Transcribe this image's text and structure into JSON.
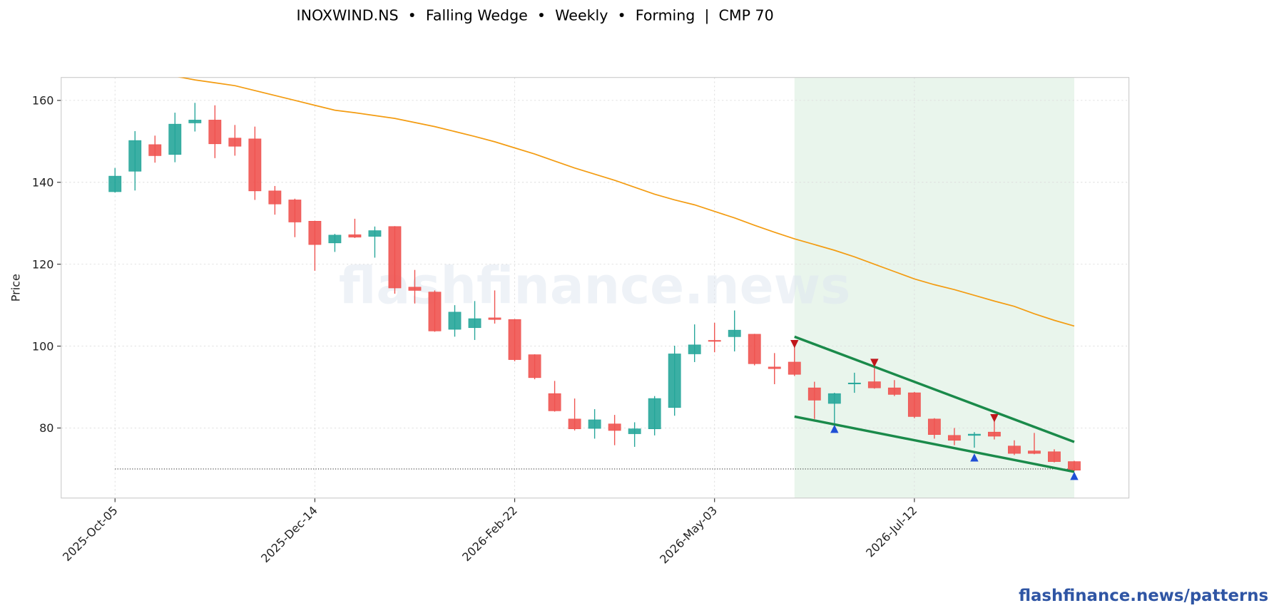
{
  "chart_data": {
    "type": "candlestick",
    "title": "INOXWIND.NS  •  Falling Wedge  •  Weekly  •  Forming  |  CMP 70",
    "ylabel": "Price",
    "watermark": "flashfinance.news",
    "footer": "flashfinance.news/patterns",
    "categories": [
      "2025-Oct-05",
      null,
      null,
      null,
      null,
      null,
      null,
      null,
      null,
      null,
      "2025-Dec-14",
      null,
      null,
      null,
      null,
      null,
      null,
      null,
      null,
      null,
      "2026-Feb-22",
      null,
      null,
      null,
      null,
      null,
      null,
      null,
      null,
      null,
      "2026-May-03",
      null,
      null,
      null,
      null,
      null,
      null,
      null,
      null,
      null,
      "2026-Jul-12",
      null,
      null,
      null,
      null,
      null,
      null,
      null,
      null
    ],
    "open": [
      137.7,
      142.7,
      149.2,
      146.8,
      154.5,
      155.2,
      150.8,
      150.6,
      137.9,
      135.7,
      130.5,
      125.2,
      127.2,
      126.8,
      129.2,
      114.4,
      113.2,
      104.1,
      104.5,
      106.9,
      106.5,
      97.9,
      88.4,
      82.2,
      79.9,
      81.0,
      78.6,
      79.8,
      85.0,
      98.1,
      101.4,
      102.3,
      102.9,
      94.9,
      96.1,
      89.8,
      86.0,
      90.8,
      91.3,
      89.8,
      88.6,
      82.2,
      78.2,
      78.2,
      79.0,
      75.6,
      74.4,
      74.2,
      71.8
    ],
    "high": [
      143.5,
      152.5,
      151.4,
      157.0,
      159.4,
      158.8,
      154.0,
      153.6,
      139.1,
      136.0,
      130.6,
      127.4,
      131.1,
      129.2,
      129.3,
      118.6,
      113.6,
      110.0,
      111.0,
      113.6,
      106.6,
      98.0,
      91.5,
      87.2,
      84.6,
      83.2,
      81.4,
      87.8,
      100.1,
      105.3,
      105.7,
      108.7,
      103.0,
      98.3,
      99.9,
      91.3,
      88.6,
      93.5,
      95.9,
      91.7,
      88.8,
      82.4,
      80.0,
      79.0,
      82.0,
      77.0,
      78.8,
      74.8,
      72.0
    ],
    "low": [
      137.5,
      138.0,
      144.8,
      144.9,
      152.4,
      145.9,
      146.5,
      135.7,
      132.1,
      126.6,
      118.4,
      123.0,
      126.4,
      121.6,
      112.8,
      110.4,
      103.5,
      102.3,
      101.5,
      105.5,
      96.3,
      91.9,
      84.0,
      79.4,
      77.4,
      75.8,
      75.4,
      78.2,
      83.0,
      96.1,
      98.5,
      98.7,
      95.3,
      90.7,
      92.7,
      82.2,
      80.4,
      88.6,
      89.6,
      87.8,
      82.4,
      77.4,
      75.8,
      75.2,
      77.2,
      73.4,
      73.6,
      71.6,
      69.5
    ],
    "close": [
      141.5,
      150.2,
      146.5,
      154.2,
      155.2,
      149.4,
      148.8,
      137.9,
      134.7,
      130.3,
      124.8,
      127.1,
      126.6,
      128.2,
      114.2,
      113.6,
      103.7,
      108.3,
      106.7,
      106.5,
      96.7,
      92.3,
      84.2,
      79.8,
      82.0,
      79.4,
      79.8,
      87.2,
      98.1,
      100.3,
      101.2,
      103.9,
      95.7,
      94.5,
      93.1,
      86.8,
      88.4,
      91.0,
      89.8,
      88.2,
      82.8,
      78.4,
      77.0,
      78.5,
      78.0,
      73.8,
      73.8,
      71.8,
      69.7
    ],
    "up_color": "#26a69a",
    "down_color": "#ef5350",
    "ma": {
      "color": "#f39c12",
      "values": [
        null,
        null,
        null,
        165.9,
        165.0,
        164.3,
        163.6,
        162.4,
        161.2,
        160.0,
        158.8,
        157.6,
        157.0,
        156.3,
        155.6,
        154.6,
        153.6,
        152.4,
        151.2,
        149.9,
        148.4,
        146.9,
        145.2,
        143.5,
        142.0,
        140.5,
        138.8,
        137.1,
        135.7,
        134.5,
        132.9,
        131.3,
        129.5,
        127.8,
        126.2,
        124.8,
        123.4,
        121.8,
        120.0,
        118.2,
        116.4,
        115.0,
        113.8,
        112.4,
        111.0,
        109.7,
        107.9,
        106.3,
        104.9
      ]
    },
    "cmp_line": 70,
    "pattern": {
      "start": 34,
      "end": 48,
      "color": "#e9f5ec",
      "trendlines": [
        {
          "color": "#1a8a4a",
          "values": [
            102.3,
            76.6
          ]
        },
        {
          "color": "#1a8a4a",
          "values": [
            82.8,
            69.3
          ]
        }
      ]
    },
    "peaks": {
      "color": "#c0161b",
      "points": [
        {
          "index": 34,
          "value": 100.5
        },
        {
          "index": 38,
          "value": 95.9
        },
        {
          "index": 44,
          "value": 82.4
        }
      ]
    },
    "troughs": {
      "color": "#1f4fd6",
      "points": [
        {
          "index": 36,
          "value": 79.8
        },
        {
          "index": 43,
          "value": 72.8
        },
        {
          "index": 48,
          "value": 68.3
        }
      ]
    },
    "ylim": [
      62.9,
      165.6
    ],
    "yticks": [
      80,
      100,
      120,
      140,
      160
    ],
    "grid": true
  }
}
